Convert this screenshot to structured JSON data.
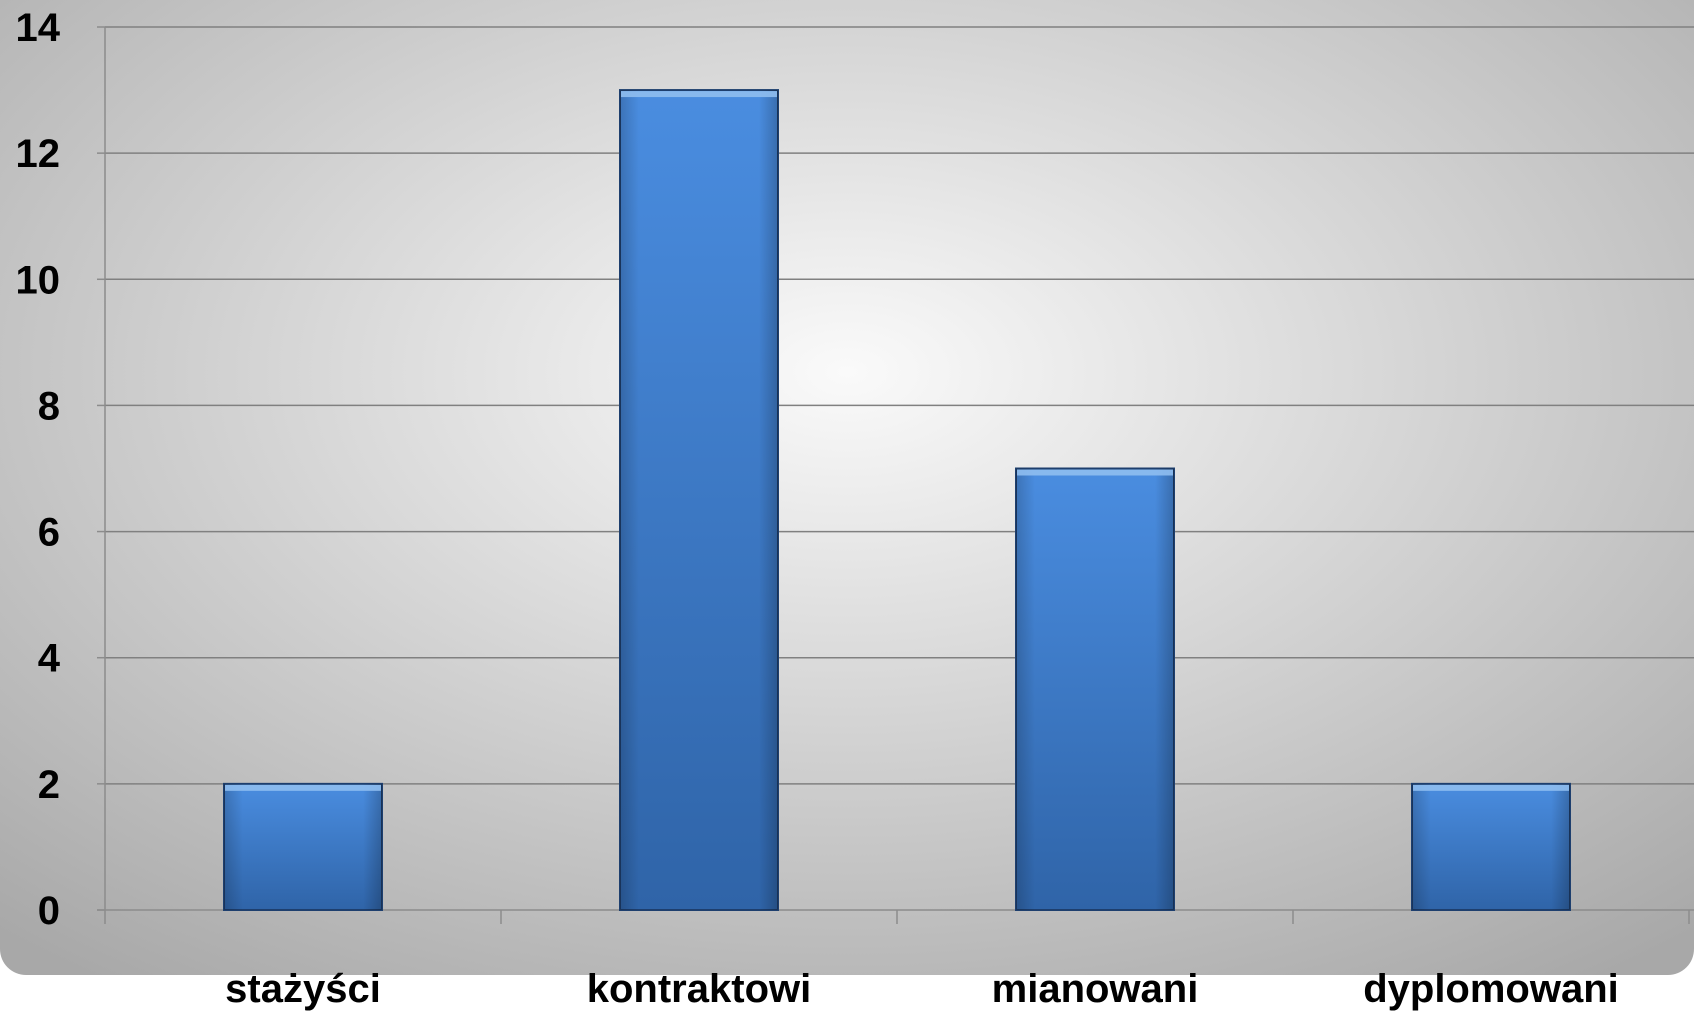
{
  "colors": {
    "bar_fill_light": "#4a8de0",
    "bar_fill_dark": "#2f64a8",
    "bar_top": "#8fbef0",
    "bar_edge": "#1e3f6e",
    "gridline": "#808080",
    "axis": "#8c8c8c",
    "background_center": "#fafafa",
    "background_edge": "#a8a8a8",
    "text": "#000000"
  },
  "chart_data": {
    "type": "bar",
    "categories": [
      "stażyści",
      "kontraktowi",
      "mianowani",
      "dyplomowani"
    ],
    "series": [
      {
        "values": [
          2,
          13,
          7,
          2
        ]
      }
    ],
    "title": "",
    "xlabel": "",
    "ylabel": "",
    "ylim": [
      0,
      14
    ],
    "yticks": [
      0,
      2,
      4,
      6,
      8,
      10,
      12,
      14
    ],
    "grid": true,
    "legend": "none"
  }
}
